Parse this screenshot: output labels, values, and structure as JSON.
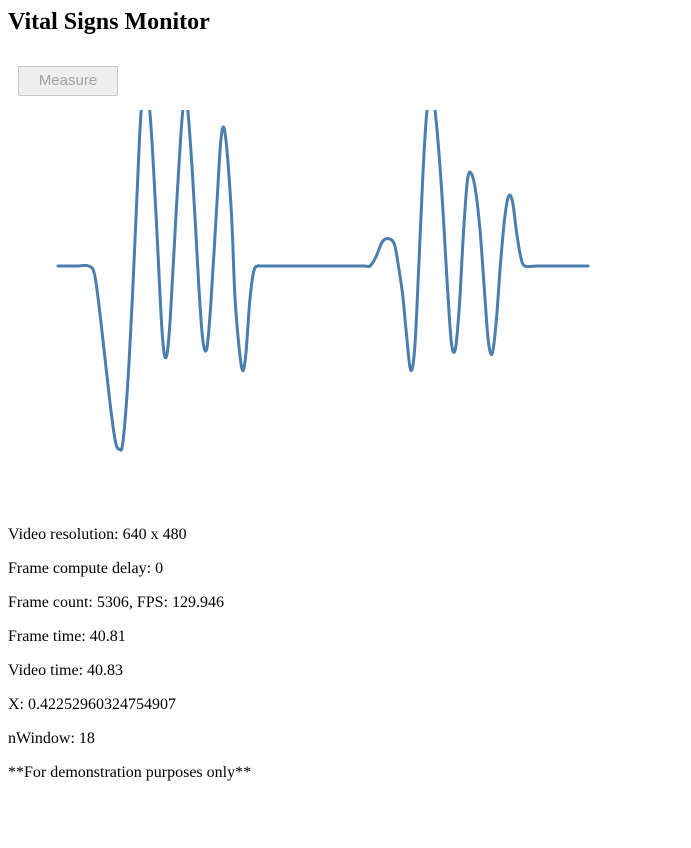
{
  "page": {
    "title": "Vital Signs Monitor"
  },
  "controls": {
    "measure_label": "Measure",
    "measure_disabled": true
  },
  "waveform": {
    "line_color": "#4a7eaf",
    "baseline": 0,
    "samples": [
      [
        0,
        0
      ],
      [
        5,
        0
      ],
      [
        10,
        0
      ],
      [
        15,
        0
      ],
      [
        18,
        -0.05
      ],
      [
        21,
        -0.3
      ],
      [
        25,
        -0.7
      ],
      [
        28,
        -0.95
      ],
      [
        30,
        -1.0
      ],
      [
        32,
        -0.95
      ],
      [
        35,
        -0.5
      ],
      [
        38,
        0.2
      ],
      [
        40,
        0.7
      ],
      [
        42,
        0.97
      ],
      [
        45,
        0.85
      ],
      [
        48,
        0.3
      ],
      [
        51,
        -0.35
      ],
      [
        53,
        -0.5
      ],
      [
        55,
        -0.3
      ],
      [
        58,
        0.3
      ],
      [
        61,
        0.82
      ],
      [
        63,
        0.92
      ],
      [
        66,
        0.5
      ],
      [
        69,
        -0.1
      ],
      [
        71,
        -0.4
      ],
      [
        73,
        -0.45
      ],
      [
        75,
        -0.2
      ],
      [
        78,
        0.35
      ],
      [
        80,
        0.7
      ],
      [
        82,
        0.72
      ],
      [
        85,
        0.3
      ],
      [
        87,
        -0.2
      ],
      [
        90,
        -0.55
      ],
      [
        92,
        -0.5
      ],
      [
        94,
        -0.2
      ],
      [
        96,
        -0.03
      ],
      [
        98,
        0
      ],
      [
        100,
        0
      ],
      [
        110,
        0
      ],
      [
        120,
        0
      ],
      [
        130,
        0
      ],
      [
        140,
        0
      ],
      [
        150,
        0
      ],
      [
        153,
        0
      ],
      [
        156,
        0.05
      ],
      [
        159,
        0.13
      ],
      [
        162,
        0.15
      ],
      [
        165,
        0.12
      ],
      [
        167,
        0.0
      ],
      [
        169,
        -0.15
      ],
      [
        171,
        -0.38
      ],
      [
        173,
        -0.57
      ],
      [
        175,
        -0.45
      ],
      [
        177,
        0.0
      ],
      [
        179,
        0.5
      ],
      [
        181,
        0.85
      ],
      [
        183,
        0.95
      ],
      [
        185,
        0.85
      ],
      [
        188,
        0.45
      ],
      [
        191,
        -0.1
      ],
      [
        193,
        -0.42
      ],
      [
        195,
        -0.45
      ],
      [
        197,
        -0.2
      ],
      [
        199,
        0.2
      ],
      [
        201,
        0.48
      ],
      [
        203,
        0.5
      ],
      [
        205,
        0.4
      ],
      [
        207,
        0.2
      ],
      [
        209,
        -0.1
      ],
      [
        211,
        -0.4
      ],
      [
        213,
        -0.48
      ],
      [
        215,
        -0.3
      ],
      [
        217,
        0.0
      ],
      [
        219,
        0.25
      ],
      [
        221,
        0.38
      ],
      [
        223,
        0.35
      ],
      [
        225,
        0.18
      ],
      [
        227,
        0.05
      ],
      [
        229,
        0
      ],
      [
        235,
        0
      ],
      [
        245,
        0
      ],
      [
        255,
        0
      ],
      [
        260,
        0
      ]
    ]
  },
  "stats": {
    "video_resolution": "Video resolution: 640 x 480",
    "frame_compute_delay": "Frame compute delay: 0",
    "frame_count_fps": "Frame count: 5306, FPS: 129.946",
    "frame_time": "Frame time: 40.81",
    "video_time": "Video time: 40.83",
    "x_value": "X: 0.42252960324754907",
    "n_window": "nWindow: 18",
    "disclaimer": "**For demonstration purposes only**"
  }
}
